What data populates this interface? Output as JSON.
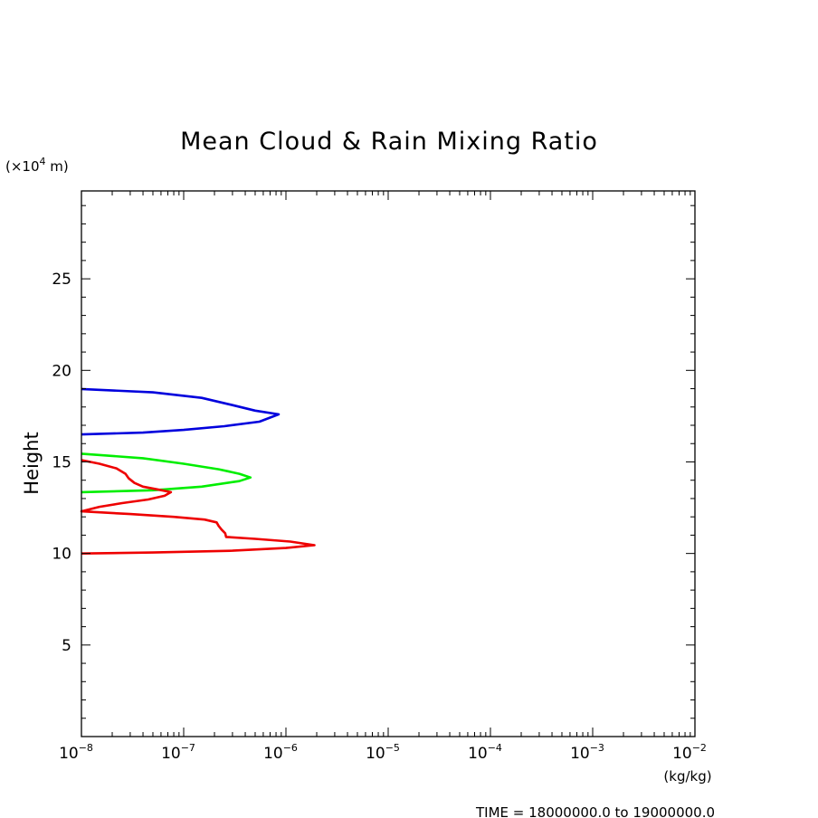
{
  "chart_data": {
    "type": "line",
    "title": "Mean Cloud & Rain Mixing Ratio",
    "ylabel": "Height",
    "y_unit_label": "(×10⁴ m)",
    "y_unit_parts": {
      "open": "(×10",
      "exp": "4",
      "close": " m)"
    },
    "xlabel": "(kg/kg)",
    "footer": "TIME = 18000000.0 to 19000000.0",
    "x_scale": "log",
    "xlim": [
      1e-08,
      0.01
    ],
    "ylim": [
      0,
      29.8
    ],
    "x_ticks": [
      {
        "value": 1e-08,
        "base": "10",
        "exp": "−8"
      },
      {
        "value": 1e-07,
        "base": "10",
        "exp": "−7"
      },
      {
        "value": 1e-06,
        "base": "10",
        "exp": "−6"
      },
      {
        "value": 1e-05,
        "base": "10",
        "exp": "−5"
      },
      {
        "value": 0.0001,
        "base": "10",
        "exp": "−4"
      },
      {
        "value": 0.001,
        "base": "10",
        "exp": "−3"
      },
      {
        "value": 0.01,
        "base": "10",
        "exp": "−2"
      }
    ],
    "y_ticks": [
      {
        "value": 5,
        "label": "5"
      },
      {
        "value": 10,
        "label": "10"
      },
      {
        "value": 15,
        "label": "15"
      },
      {
        "value": 20,
        "label": "20"
      },
      {
        "value": 25,
        "label": "25"
      }
    ],
    "y_minor_step": 1,
    "grid": false,
    "series": [
      {
        "color": "#0000dd",
        "points": [
          [
            1e-08,
            18.98
          ],
          [
            5e-08,
            18.8
          ],
          [
            1.5e-07,
            18.5
          ],
          [
            3e-07,
            18.1
          ],
          [
            5e-07,
            17.8
          ],
          [
            8.5e-07,
            17.6
          ],
          [
            5.5e-07,
            17.2
          ],
          [
            2.5e-07,
            16.95
          ],
          [
            1e-07,
            16.75
          ],
          [
            4e-08,
            16.6
          ],
          [
            1e-08,
            16.5
          ]
        ]
      },
      {
        "color": "#00ee00",
        "points": [
          [
            1e-08,
            15.45
          ],
          [
            4e-08,
            15.2
          ],
          [
            1e-07,
            14.9
          ],
          [
            2.2e-07,
            14.6
          ],
          [
            3.5e-07,
            14.35
          ],
          [
            4.5e-07,
            14.15
          ],
          [
            3.5e-07,
            13.95
          ],
          [
            1.5e-07,
            13.65
          ],
          [
            5e-08,
            13.45
          ],
          [
            1e-08,
            13.35
          ]
        ]
      },
      {
        "color": "#ee0000",
        "points": [
          [
            1e-08,
            15.1
          ],
          [
            1.5e-08,
            14.9
          ],
          [
            2.2e-08,
            14.65
          ],
          [
            2.7e-08,
            14.35
          ],
          [
            2.9e-08,
            14.1
          ],
          [
            3.3e-08,
            13.85
          ],
          [
            4e-08,
            13.65
          ],
          [
            5.5e-08,
            13.5
          ],
          [
            7.5e-08,
            13.35
          ],
          [
            6.5e-08,
            13.15
          ],
          [
            4.5e-08,
            12.95
          ],
          [
            2.5e-08,
            12.75
          ],
          [
            1.5e-08,
            12.55
          ],
          [
            1e-08,
            12.3
          ],
          [
            3e-08,
            12.15
          ],
          [
            8e-08,
            12.0
          ],
          [
            1.6e-07,
            11.85
          ],
          [
            2.1e-07,
            11.7
          ],
          [
            2.2e-07,
            11.5
          ],
          [
            2.35e-07,
            11.3
          ],
          [
            2.55e-07,
            11.1
          ],
          [
            2.6e-07,
            10.9
          ],
          [
            5e-07,
            10.8
          ],
          [
            1.1e-06,
            10.65
          ],
          [
            1.9e-06,
            10.45
          ],
          [
            1e-06,
            10.3
          ],
          [
            3e-07,
            10.15
          ],
          [
            5e-08,
            10.05
          ],
          [
            1e-08,
            10.0
          ]
        ]
      }
    ]
  }
}
